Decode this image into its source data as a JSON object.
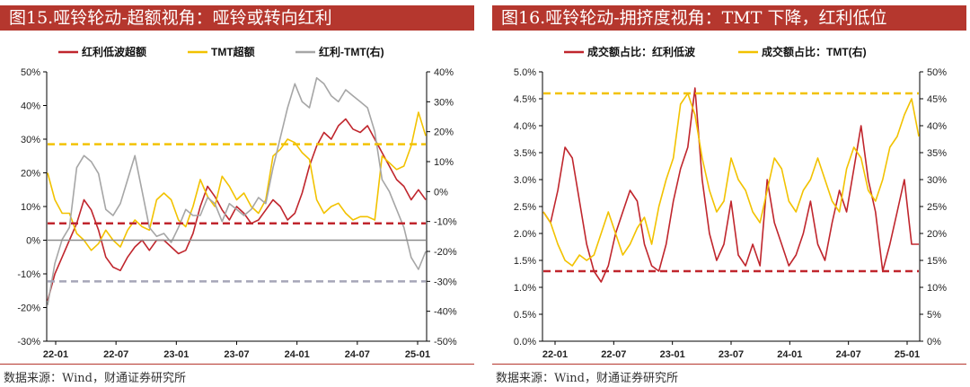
{
  "colors": {
    "red": "#c0262d",
    "yellow": "#f2c200",
    "gray": "#a6a6a6",
    "zero": "#8c8c8c",
    "title_bg": "#b5372e"
  },
  "panels": [
    {
      "title": "图15.哑铃轮动-超额视角：哑铃或转向红利",
      "source": "数据来源：Wind，财通证券研究所"
    },
    {
      "title": "图16.哑铃轮动-拥挤度视角：TMT 下降，红利低位",
      "source": "数据来源：Wind，财通证券研究所"
    }
  ],
  "chart_data": [
    {
      "type": "line",
      "x_labels": [
        "22-01",
        "22-07",
        "23-01",
        "23-07",
        "24-01",
        "24-07",
        "25-01"
      ],
      "y_left": {
        "min": -30,
        "max": 50,
        "step": 10,
        "ticks": [
          "-30%",
          "-20%",
          "-10%",
          "0%",
          "10%",
          "20%",
          "30%",
          "40%",
          "50%"
        ]
      },
      "y_right": {
        "min": -50,
        "max": 40,
        "step": 10,
        "ticks": [
          "-50%",
          "-40%",
          "-30%",
          "-20%",
          "-10%",
          "0%",
          "10%",
          "20%",
          "30%",
          "40%"
        ]
      },
      "legend": [
        "红利低波超额",
        "TMT超额",
        "红利-TMT(右)"
      ],
      "series": [
        {
          "name": "红利低波超额",
          "axis": "left",
          "color": "#c0262d",
          "values": [
            -18,
            -10,
            -5,
            0,
            5,
            12,
            9,
            3,
            -5,
            -8,
            -9,
            -5,
            -2,
            0,
            -3,
            0,
            0,
            -2,
            -4,
            -3,
            2,
            10,
            16,
            13,
            9,
            6,
            10,
            8,
            5,
            6,
            9,
            12,
            10,
            6,
            8,
            14,
            22,
            28,
            32,
            30,
            34,
            36,
            33,
            32,
            34,
            30,
            26,
            22,
            18,
            16,
            12,
            15,
            12
          ]
        },
        {
          "name": "TMT超额",
          "axis": "left",
          "color": "#f2c200",
          "values": [
            20,
            12,
            8,
            8,
            2,
            0,
            -3,
            -1,
            3,
            0,
            -2,
            3,
            6,
            4,
            3,
            12,
            14,
            12,
            6,
            4,
            10,
            18,
            13,
            10,
            19,
            16,
            12,
            14,
            10,
            8,
            12,
            25,
            27,
            30,
            29,
            26,
            24,
            12,
            8,
            10,
            11,
            8,
            6,
            7,
            7,
            6,
            25,
            23,
            21,
            22,
            28,
            38,
            31
          ]
        },
        {
          "name": "红利-TMT(右)",
          "axis": "right",
          "color": "#a6a6a6",
          "values": [
            -38,
            -24,
            -16,
            -12,
            8,
            12,
            10,
            6,
            -6,
            -8,
            -4,
            4,
            12,
            0,
            -12,
            -15,
            -14,
            -17,
            -12,
            -6,
            -8,
            -8,
            -2,
            -4,
            -10,
            -4,
            -6,
            -8,
            -6,
            -2,
            -4,
            8,
            18,
            28,
            36,
            30,
            28,
            38,
            36,
            32,
            30,
            34,
            32,
            30,
            28,
            20,
            4,
            0,
            -6,
            -12,
            -22,
            -26,
            -20
          ]
        }
      ],
      "ref_lines": [
        {
          "axis": "left",
          "value": 28.5,
          "color": "#f2c200"
        },
        {
          "axis": "left",
          "value": 5,
          "color": "#c0262d"
        },
        {
          "axis": "right",
          "value": -30,
          "color": "#a6a6b8"
        },
        {
          "axis": "left",
          "value": 0,
          "color": "#8c8c8c",
          "solid": true
        }
      ]
    },
    {
      "type": "line",
      "x_labels": [
        "22-01",
        "22-07",
        "23-01",
        "23-07",
        "24-01",
        "24-07",
        "25-01"
      ],
      "y_left": {
        "min": 0,
        "max": 5,
        "step": 0.5,
        "ticks": [
          "0.0%",
          "0.5%",
          "1.0%",
          "1.5%",
          "2.0%",
          "2.5%",
          "3.0%",
          "3.5%",
          "4.0%",
          "4.5%",
          "5.0%"
        ]
      },
      "y_right": {
        "min": 0,
        "max": 50,
        "step": 5,
        "ticks": [
          "0%",
          "5%",
          "10%",
          "15%",
          "20%",
          "25%",
          "30%",
          "35%",
          "40%",
          "45%",
          "50%"
        ]
      },
      "legend": [
        "成交额占比：红利低波",
        "成交额占比：TMT(右)"
      ],
      "series": [
        {
          "name": "成交额占比：红利低波",
          "axis": "left",
          "color": "#c0262d",
          "values": [
            2.4,
            2.2,
            2.8,
            3.6,
            3.4,
            2.6,
            1.8,
            1.3,
            1.1,
            1.4,
            2.0,
            2.4,
            2.8,
            2.6,
            1.8,
            1.4,
            1.3,
            1.8,
            2.6,
            3.2,
            3.6,
            4.7,
            3.0,
            2.0,
            1.5,
            1.8,
            2.6,
            1.6,
            1.4,
            1.8,
            1.4,
            3.0,
            2.2,
            1.8,
            1.4,
            1.6,
            2.0,
            2.6,
            1.8,
            1.5,
            2.2,
            2.8,
            2.4,
            3.2,
            4.0,
            3.0,
            2.4,
            1.3,
            1.8,
            2.4,
            3.0,
            1.8,
            1.8
          ]
        },
        {
          "name": "成交额占比：TMT(右)",
          "axis": "right",
          "color": "#f2c200",
          "values": [
            24,
            22,
            18,
            15,
            14,
            16,
            15,
            16,
            20,
            24,
            20,
            16,
            18,
            21,
            23,
            18,
            25,
            30,
            34,
            44,
            46,
            42,
            34,
            28,
            24,
            26,
            34,
            30,
            28,
            24,
            22,
            28,
            34,
            32,
            26,
            24,
            28,
            30,
            34,
            30,
            26,
            24,
            32,
            36,
            34,
            28,
            26,
            30,
            36,
            38,
            42,
            45,
            38
          ]
        }
      ],
      "ref_lines": [
        {
          "axis": "left",
          "value": 4.6,
          "color": "#f2c200"
        },
        {
          "axis": "left",
          "value": 1.3,
          "color": "#c0262d"
        }
      ]
    }
  ]
}
